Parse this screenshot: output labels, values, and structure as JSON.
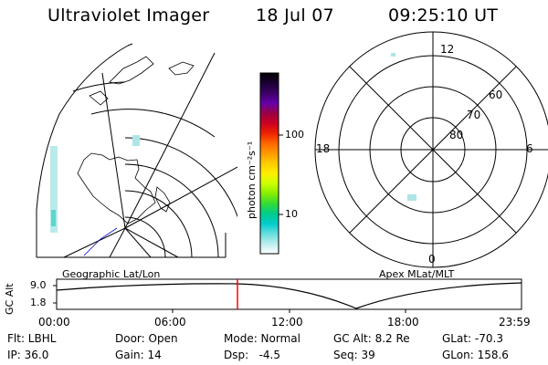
{
  "header": {
    "title": "Ultraviolet Imager",
    "date": "18 Jul 07",
    "time": "09:25:10 UT"
  },
  "colorbar": {
    "unit_label": "photon cm⁻²s⁻¹",
    "ticks": [
      "100",
      "10"
    ],
    "colors": [
      "#000000",
      "#1a0033",
      "#3a0066",
      "#6600aa",
      "#990044",
      "#cc0022",
      "#ee2200",
      "#ff6600",
      "#ff9900",
      "#ffcc00",
      "#ffee00",
      "#ccff00",
      "#88ee00",
      "#33dd33",
      "#00cc88",
      "#00cccc",
      "#66dddd",
      "#bbeeee",
      "#ffffff"
    ]
  },
  "left_panel": {
    "caption": "Geographic Lat/Lon"
  },
  "right_panel": {
    "caption": "Apex MLat/MLT",
    "mlt_labels": {
      "top": "12",
      "left": "18",
      "right": "6",
      "bottom": "0"
    },
    "lat_labels": [
      "60",
      "70",
      "80"
    ]
  },
  "timeline": {
    "ylabel": "GC Alt",
    "y_ticks": [
      "9.0",
      "1.8"
    ],
    "x_ticks": [
      "00:00",
      "06:00",
      "12:00",
      "18:00",
      "23:59"
    ],
    "marker_color": "#ff0000"
  },
  "info": {
    "flt": "Flt: LBHL",
    "ip": "IP: 36.0",
    "door": "Door: Open",
    "gain": "Gain: 14",
    "mode": "Mode: Normal",
    "dsp": "Dsp:   -4.5",
    "gcalt": "GC Alt: 8.2 Re",
    "seq": "Seq: 39",
    "glat": "GLat: -70.3",
    "glon": "GLon: 158.6"
  }
}
